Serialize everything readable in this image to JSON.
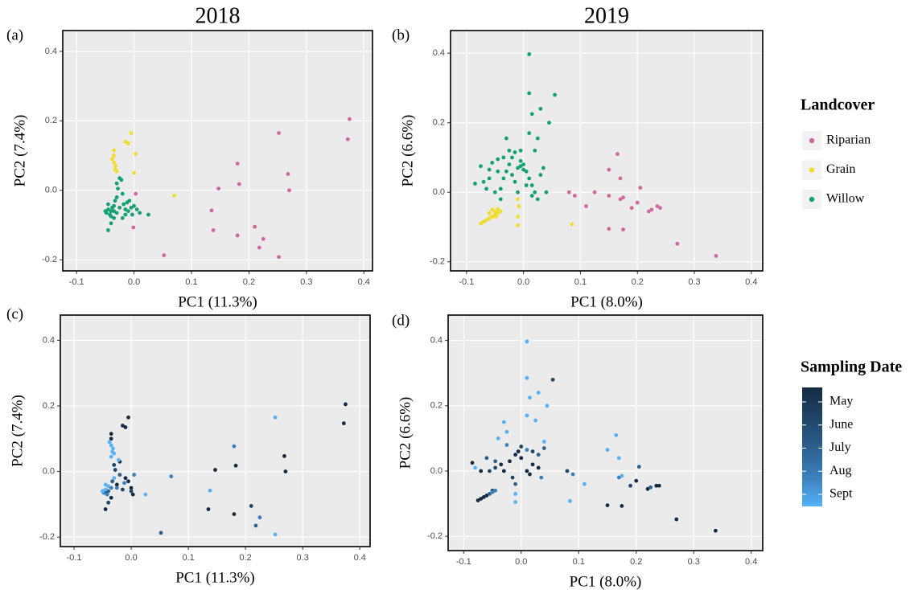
{
  "chart_data": [
    {
      "type": "scatter",
      "panel_label": "(a)",
      "title": "2018",
      "xlabel": "PC1 (11.3%)",
      "ylabel": "PC2 (7.4%)",
      "xlim": [
        -0.124,
        0.415
      ],
      "ylim": [
        -0.232,
        0.46
      ],
      "xticks": [
        -0.1,
        {
          "value": 0,
          "label": "0.0"
        },
        0.1,
        0.2,
        0.3,
        0.4
      ],
      "yticks": [
        -0.2,
        {
          "value": 0,
          "label": "0.0"
        },
        0.2,
        0.4
      ],
      "grid": true,
      "legend_title": "Landcover",
      "legend_style": "keys",
      "series": [
        {
          "name": "Riparian",
          "color": "#d1679f",
          "x": [
            0.375,
            0.372,
            0.252,
            0.268,
            0.27,
            0.18,
            0.183,
            0.147,
            0.135,
            0.138,
            0.18,
            0.21,
            0.225,
            0.218,
            0.252,
            0.052,
            0.003,
            -0.001
          ],
          "values": [
            0.205,
            0.147,
            0.165,
            0.047,
            0.0,
            0.077,
            0.018,
            0.005,
            -0.058,
            -0.115,
            -0.13,
            -0.105,
            -0.14,
            -0.165,
            -0.192,
            -0.187,
            -0.01,
            -0.107
          ]
        },
        {
          "name": "Grain",
          "color": "#f0dc2c",
          "x": [
            -0.005,
            -0.01,
            -0.015,
            0.003,
            -0.035,
            -0.035,
            -0.038,
            -0.035,
            -0.032,
            -0.033,
            -0.03,
            0.0,
            0.07
          ],
          "values": [
            0.165,
            0.135,
            0.14,
            0.105,
            0.115,
            0.1,
            0.09,
            0.08,
            0.07,
            0.06,
            0.055,
            0.05,
            -0.015
          ]
        },
        {
          "name": "Willow",
          "color": "#13a073",
          "x": [
            -0.05,
            -0.048,
            -0.045,
            -0.045,
            -0.042,
            -0.04,
            -0.04,
            -0.038,
            -0.035,
            -0.035,
            -0.033,
            -0.03,
            -0.03,
            -0.028,
            -0.025,
            -0.025,
            -0.022,
            -0.02,
            -0.018,
            -0.015,
            -0.012,
            -0.01,
            -0.008,
            -0.005,
            -0.003,
            0.0,
            0.005,
            0.01,
            0.025,
            -0.045,
            -0.04,
            -0.035,
            -0.03,
            -0.02,
            -0.015
          ],
          "values": [
            -0.06,
            -0.065,
            -0.055,
            -0.115,
            -0.07,
            -0.06,
            -0.095,
            -0.05,
            -0.045,
            -0.08,
            -0.03,
            -0.02,
            -0.065,
            0.005,
            0.035,
            -0.05,
            0.03,
            -0.01,
            -0.04,
            -0.055,
            -0.035,
            -0.06,
            -0.03,
            -0.05,
            -0.07,
            -0.045,
            -0.055,
            -0.065,
            -0.07,
            -0.04,
            -0.075,
            -0.06,
            0.02,
            -0.08,
            -0.07
          ]
        }
      ]
    },
    {
      "type": "scatter",
      "panel_label": "(b)",
      "title": "2019",
      "xlabel": "PC1 (8.0%)",
      "ylabel": "PC2 (6.6%)",
      "xlim": [
        -0.128,
        0.42
      ],
      "ylim": [
        -0.226,
        0.465
      ],
      "xticks": [
        -0.1,
        {
          "value": 0,
          "label": "0.0"
        },
        0.1,
        0.2,
        0.3,
        0.4
      ],
      "yticks": [
        -0.2,
        {
          "value": 0,
          "label": "0.0"
        },
        0.2,
        0.4
      ],
      "grid": true,
      "series": [
        {
          "name": "Riparian",
          "color": "#d1679f",
          "x": [
            0.08,
            0.09,
            0.11,
            0.15,
            0.165,
            0.17,
            0.15,
            0.175,
            0.17,
            0.19,
            0.2,
            0.205,
            0.22,
            0.225,
            0.235,
            0.24,
            0.15,
            0.175,
            0.27,
            0.338,
            0.125
          ],
          "values": [
            0.0,
            -0.01,
            -0.04,
            0.065,
            0.11,
            0.04,
            -0.01,
            -0.015,
            -0.02,
            -0.045,
            -0.03,
            0.013,
            -0.055,
            -0.05,
            -0.04,
            -0.045,
            -0.105,
            -0.107,
            -0.148,
            -0.183,
            0.0
          ]
        },
        {
          "name": "Grain",
          "color": "#f0dc2c",
          "x": [
            0.085,
            -0.01,
            -0.01,
            -0.075,
            -0.07,
            -0.065,
            -0.06,
            -0.055,
            -0.05,
            -0.045,
            -0.05,
            -0.055,
            -0.045,
            -0.04,
            -0.008,
            -0.01,
            -0.06,
            -0.048
          ],
          "values": [
            -0.092,
            -0.095,
            -0.07,
            -0.09,
            -0.085,
            -0.08,
            -0.075,
            -0.07,
            -0.065,
            -0.06,
            -0.055,
            -0.05,
            -0.048,
            -0.055,
            -0.04,
            -0.02,
            -0.06,
            -0.07
          ]
        },
        {
          "name": "Willow",
          "color": "#13a073",
          "x": [
            0.01,
            0.01,
            0.03,
            0.055,
            0.045,
            0.015,
            -0.03,
            0.01,
            0.025,
            -0.005,
            -0.02,
            0.02,
            -0.045,
            -0.06,
            -0.075,
            -0.085,
            -0.07,
            -0.065,
            -0.05,
            -0.04,
            -0.035,
            -0.03,
            -0.025,
            -0.02,
            -0.015,
            -0.01,
            -0.005,
            0.0,
            0.005,
            0.01,
            0.015,
            0.02,
            0.025,
            0.03,
            0.035,
            0.04,
            -0.055,
            -0.045,
            -0.035,
            -0.025,
            -0.015,
            -0.005,
            0.005,
            0.015,
            -0.06,
            -0.04,
            -0.01,
            0.0
          ],
          "values": [
            0.397,
            0.285,
            0.24,
            0.28,
            0.2,
            0.225,
            0.155,
            0.17,
            0.155,
            0.12,
            0.1,
            0.12,
            0.095,
            0.065,
            0.075,
            0.025,
            0.03,
            0.01,
            0.0,
            0.01,
            0.04,
            0.06,
            0.08,
            0.05,
            0.03,
            0.07,
            0.075,
            0.065,
            0.06,
            0.04,
            0.02,
            0.0,
            -0.02,
            0.05,
            0.07,
            0.0,
            0.085,
            0.06,
            0.1,
            0.12,
            0.115,
            0.09,
            0.02,
            -0.01,
            0.04,
            -0.02,
            0.0,
            0.08
          ]
        }
      ]
    },
    {
      "type": "scatter",
      "panel_label": "(c)",
      "xlabel": "PC1 (11.3%)",
      "ylabel": "PC2 (7.4%)",
      "xlim": [
        -0.124,
        0.418
      ],
      "ylim": [
        -0.229,
        0.477
      ],
      "xticks": [
        -0.1,
        {
          "value": 0,
          "label": "0.0"
        },
        0.1,
        0.2,
        0.3,
        0.4
      ],
      "yticks": [
        -0.2,
        {
          "value": 0,
          "label": "0.0"
        },
        0.2,
        0.4
      ],
      "grid": true,
      "legend_title": "Sampling Date",
      "legend_style": "colorbar",
      "series": [
        {
          "name": "May",
          "color": "#132b43",
          "x": [
            0.375,
            0.372,
            0.268,
            0.27,
            0.18,
            0.183,
            0.147,
            0.135,
            -0.005,
            -0.01,
            -0.015,
            -0.035,
            -0.035,
            -0.045,
            -0.035,
            -0.005,
            0.0,
            0.003,
            -0.01,
            -0.02,
            -0.025
          ],
          "values": [
            0.205,
            0.147,
            0.047,
            0.0,
            -0.13,
            0.018,
            0.005,
            -0.115,
            0.165,
            0.135,
            0.14,
            0.115,
            0.1,
            -0.115,
            -0.08,
            -0.03,
            -0.05,
            -0.07,
            -0.02,
            0.03,
            -0.04
          ]
        },
        {
          "name": "June",
          "color": "#1f4466",
          "x": [
            0.21,
            -0.03,
            -0.04,
            -0.015,
            0.0,
            -0.045,
            -0.028
          ],
          "values": [
            -0.105,
            0.02,
            -0.095,
            -0.055,
            -0.06,
            -0.065,
            0.005
          ]
        },
        {
          "name": "July",
          "color": "#2c5f8c",
          "x": [
            0.218,
            0.052,
            -0.02,
            -0.04,
            -0.05,
            -0.033
          ],
          "values": [
            -0.165,
            -0.187,
            -0.01,
            -0.06,
            -0.06,
            -0.03
          ]
        },
        {
          "name": "Aug",
          "color": "#3b7fbb",
          "x": [
            0.18,
            0.07,
            0.225,
            -0.042,
            -0.025,
            -0.035,
            -0.048,
            0.005,
            -0.012
          ],
          "values": [
            0.077,
            -0.015,
            -0.14,
            -0.07,
            -0.05,
            -0.05,
            -0.065,
            -0.01,
            -0.035
          ]
        },
        {
          "name": "Sept",
          "color": "#56b1f7",
          "x": [
            0.252,
            0.252,
            0.138,
            0.025,
            -0.038,
            -0.035,
            -0.032,
            -0.033,
            -0.03,
            -0.035,
            -0.04,
            -0.045,
            -0.03,
            -0.022,
            -0.05,
            -0.045
          ],
          "values": [
            0.165,
            -0.192,
            -0.058,
            -0.07,
            0.09,
            0.08,
            0.07,
            0.06,
            0.055,
            0.045,
            -0.045,
            -0.055,
            -0.02,
            0.035,
            -0.06,
            -0.04
          ]
        }
      ]
    },
    {
      "type": "scatter",
      "panel_label": "(d)",
      "xlabel": "PC1 (8.0%)",
      "ylabel": "PC2 (6.6%)",
      "xlim": [
        -0.127,
        0.42
      ],
      "ylim": [
        -0.244,
        0.478
      ],
      "xticks": [
        -0.1,
        {
          "value": 0,
          "label": "0.0"
        },
        0.1,
        0.2,
        0.3,
        0.4
      ],
      "yticks": [
        -0.2,
        {
          "value": 0,
          "label": "0.0"
        },
        0.2,
        0.4
      ],
      "grid": true,
      "series": [
        {
          "name": "May",
          "color": "#132b43",
          "x": [
            0.27,
            0.338,
            0.15,
            0.175,
            0.22,
            0.235,
            0.24,
            0.2,
            -0.075,
            -0.07,
            -0.065,
            -0.06,
            -0.035,
            -0.03,
            -0.02,
            -0.01,
            0.0,
            0.01,
            0.02,
            -0.085,
            -0.07,
            0.015,
            0.03,
            -0.005
          ],
          "values": [
            -0.148,
            -0.183,
            -0.105,
            -0.107,
            -0.055,
            -0.045,
            -0.045,
            -0.03,
            -0.09,
            -0.085,
            -0.08,
            -0.075,
            0.02,
            0.0,
            0.03,
            0.05,
            0.04,
            0.0,
            0.02,
            0.025,
            0.0,
            -0.01,
            0.01,
            0.06
          ]
        },
        {
          "name": "June",
          "color": "#1f4466",
          "x": [
            0.19,
            0.08,
            -0.055,
            -0.045,
            0.02,
            -0.015,
            0.0,
            0.055,
            -0.05
          ],
          "values": [
            -0.045,
            0.0,
            0.0,
            0.01,
            0.06,
            -0.02,
            0.075,
            0.28,
            -0.06
          ]
        },
        {
          "name": "July",
          "color": "#2c5f8c",
          "x": [
            0.225,
            0.205,
            -0.055,
            -0.045,
            -0.01,
            0.03,
            -0.06,
            0.04
          ],
          "values": [
            -0.05,
            0.013,
            -0.07,
            0.03,
            -0.04,
            0.05,
            0.04,
            0.07
          ]
        },
        {
          "name": "Aug",
          "color": "#3b7fbb",
          "x": [
            0.17,
            0.09,
            -0.05,
            -0.045,
            0.035,
            -0.025,
            0.01
          ],
          "values": [
            -0.02,
            -0.01,
            -0.065,
            -0.06,
            -0.02,
            0.08,
            0.065
          ]
        },
        {
          "name": "Sept",
          "color": "#56b1f7",
          "x": [
            0.01,
            0.01,
            0.03,
            0.045,
            0.015,
            0.01,
            0.025,
            -0.03,
            0.165,
            0.15,
            0.17,
            0.11,
            0.085,
            -0.01,
            -0.01,
            -0.04,
            -0.025,
            0.04,
            -0.08,
            0.175
          ],
          "values": [
            0.397,
            0.285,
            0.24,
            0.2,
            0.225,
            0.17,
            0.155,
            0.15,
            0.11,
            0.065,
            0.04,
            -0.04,
            -0.092,
            -0.095,
            -0.07,
            0.1,
            0.12,
            0.09,
            0.01,
            -0.015
          ]
        }
      ]
    }
  ]
}
